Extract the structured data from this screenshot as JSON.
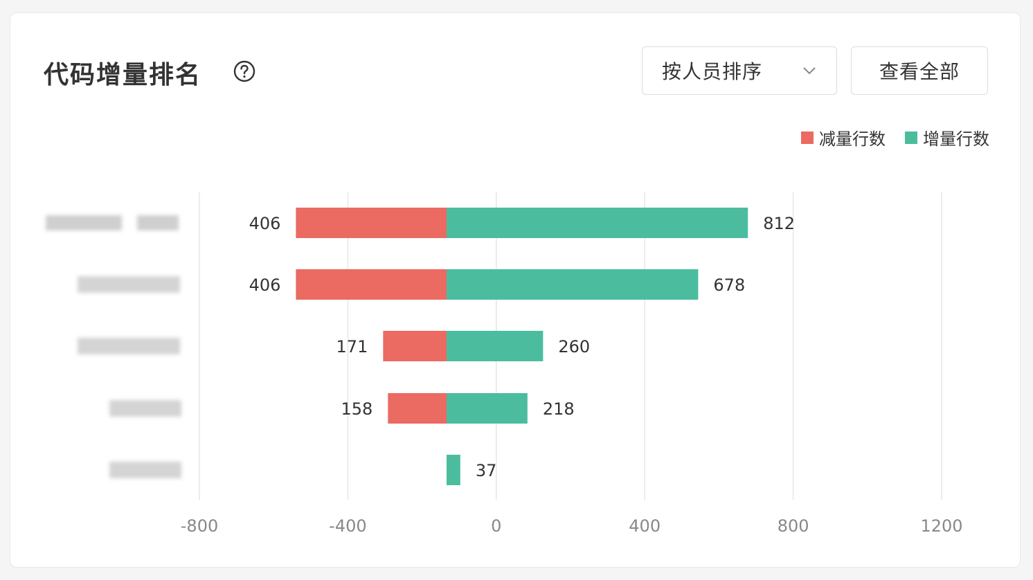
{
  "header": {
    "title": "代码增量排名",
    "help_icon": "question-circle-icon",
    "sort_select": {
      "selected": "按人员排序",
      "icon": "chevron-down-icon"
    },
    "view_all_label": "查看全部"
  },
  "colors": {
    "decrease": "#eb6a62",
    "increase": "#4bbd9e",
    "grid": "#e6e6e6",
    "axis_text": "#888888",
    "label_text": "#333333"
  },
  "chart_data": {
    "type": "bar",
    "orientation": "horizontal",
    "stacked": "diverging",
    "categories": [
      "",
      "",
      "",
      "",
      ""
    ],
    "series": [
      {
        "name": "减量行数",
        "values": [
          406,
          406,
          171,
          158,
          0
        ]
      },
      {
        "name": "增量行数",
        "values": [
          812,
          678,
          260,
          218,
          37
        ]
      }
    ],
    "data_labels": {
      "decrease": [
        "406",
        "406",
        "171",
        "158",
        ""
      ],
      "increase": [
        "812",
        "678",
        "260",
        "218",
        "37"
      ]
    },
    "xlim": [
      -800,
      1200
    ],
    "xticks": [
      -800,
      -400,
      0,
      400,
      800,
      1200
    ],
    "xtick_labels": [
      "-800",
      "-400",
      "0",
      "400",
      "800",
      "1200"
    ],
    "grid": true,
    "legend_position": "top-right",
    "category_labels_obscured": true
  }
}
